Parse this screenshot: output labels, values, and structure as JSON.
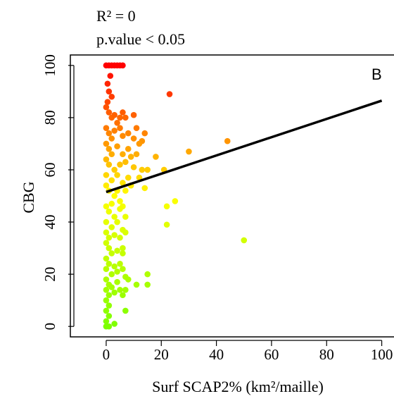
{
  "chart_data": {
    "type": "scatter",
    "annotations": {
      "r2": "R² = 0",
      "pvalue": "p.value < 0.05",
      "panel": "B"
    },
    "xlabel": "Surf SCAP2%  (km²/maille)",
    "ylabel": "CBG",
    "xlim": [
      -13,
      107
    ],
    "ylim": [
      -4,
      104
    ],
    "xticks": [
      0,
      20,
      40,
      60,
      80,
      100
    ],
    "yticks": [
      0,
      20,
      40,
      60,
      80,
      100
    ],
    "grid": false,
    "color_scale": {
      "low": "#7cff00",
      "mid": "#ffff00",
      "high": "#ff0000",
      "domain": [
        0,
        100
      ]
    },
    "regression": {
      "x": [
        0,
        100
      ],
      "y": [
        51.5,
        86.5
      ],
      "color": "#000000"
    },
    "points": [
      [
        0,
        100
      ],
      [
        1,
        100
      ],
      [
        2,
        100
      ],
      [
        3,
        100
      ],
      [
        4,
        100
      ],
      [
        5,
        100
      ],
      [
        6,
        100
      ],
      [
        0.5,
        93
      ],
      [
        1.5,
        96
      ],
      [
        1,
        90
      ],
      [
        0.5,
        86
      ],
      [
        2,
        88
      ],
      [
        0,
        84
      ],
      [
        1,
        82
      ],
      [
        2,
        80
      ],
      [
        3,
        81
      ],
      [
        4,
        78
      ],
      [
        5,
        80
      ],
      [
        6,
        82
      ],
      [
        7,
        80
      ],
      [
        10,
        81
      ],
      [
        0,
        76
      ],
      [
        1,
        74
      ],
      [
        2,
        72
      ],
      [
        3,
        75
      ],
      [
        5,
        76
      ],
      [
        6,
        73
      ],
      [
        8,
        74
      ],
      [
        11,
        76
      ],
      [
        14,
        74
      ],
      [
        13,
        71
      ],
      [
        10,
        72
      ],
      [
        0,
        70
      ],
      [
        1,
        68
      ],
      [
        2,
        66
      ],
      [
        4,
        69
      ],
      [
        6,
        66
      ],
      [
        8,
        68
      ],
      [
        11,
        66
      ],
      [
        12,
        70
      ],
      [
        18,
        65
      ],
      [
        30,
        67
      ],
      [
        44,
        71
      ],
      [
        0,
        64
      ],
      [
        1,
        62
      ],
      [
        3,
        60
      ],
      [
        5,
        62
      ],
      [
        7,
        63
      ],
      [
        9,
        65
      ],
      [
        10,
        61
      ],
      [
        13,
        60
      ],
      [
        15,
        60
      ],
      [
        21,
        60
      ],
      [
        0,
        58
      ],
      [
        2,
        56
      ],
      [
        4,
        58
      ],
      [
        6,
        55
      ],
      [
        8,
        57
      ],
      [
        9,
        54
      ],
      [
        12,
        57
      ],
      [
        7,
        52
      ],
      [
        14,
        53
      ],
      [
        0,
        54
      ],
      [
        1,
        52
      ],
      [
        3,
        50
      ],
      [
        4,
        52
      ],
      [
        5,
        48
      ],
      [
        2,
        47
      ],
      [
        6,
        46
      ],
      [
        0,
        46
      ],
      [
        1,
        44
      ],
      [
        3,
        42
      ],
      [
        5,
        45
      ],
      [
        0,
        40
      ],
      [
        2,
        38
      ],
      [
        4,
        40
      ],
      [
        7,
        42
      ],
      [
        0,
        36
      ],
      [
        1,
        34
      ],
      [
        3,
        35
      ],
      [
        5,
        34
      ],
      [
        6,
        37
      ],
      [
        7,
        36
      ],
      [
        22,
        46
      ],
      [
        25,
        48
      ],
      [
        22,
        39
      ],
      [
        50,
        33
      ],
      [
        0,
        32
      ],
      [
        1,
        30
      ],
      [
        2,
        28
      ],
      [
        4,
        29
      ],
      [
        6,
        30
      ],
      [
        6,
        28
      ],
      [
        0,
        26
      ],
      [
        1,
        24
      ],
      [
        3,
        23
      ],
      [
        5,
        24
      ],
      [
        0,
        22
      ],
      [
        2,
        20
      ],
      [
        4,
        21
      ],
      [
        6,
        22
      ],
      [
        7,
        19
      ],
      [
        15,
        20
      ],
      [
        0,
        18
      ],
      [
        1,
        16
      ],
      [
        2,
        15
      ],
      [
        4,
        17
      ],
      [
        8,
        18
      ],
      [
        11,
        16
      ],
      [
        15,
        16
      ],
      [
        0,
        14
      ],
      [
        1,
        12
      ],
      [
        3,
        13
      ],
      [
        5,
        14
      ],
      [
        6,
        12
      ],
      [
        7,
        14
      ],
      [
        7,
        6
      ],
      [
        0,
        10
      ],
      [
        1,
        8
      ],
      [
        0,
        6
      ],
      [
        1,
        4
      ],
      [
        0,
        2
      ],
      [
        0,
        0
      ],
      [
        1,
        0
      ],
      [
        3,
        1
      ],
      [
        23,
        89
      ]
    ]
  }
}
